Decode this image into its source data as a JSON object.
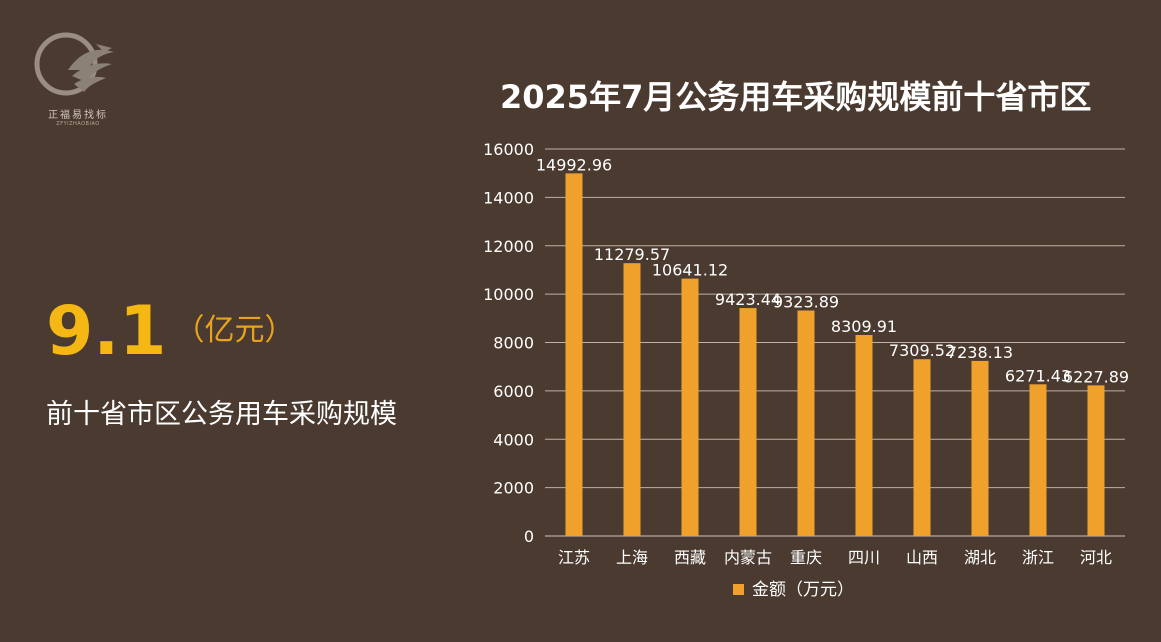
{
  "logo": {
    "name": "正福易找标",
    "sub": "ZFYIZHAOBIAO"
  },
  "headline": {
    "value": "9.1",
    "unit": "（亿元）",
    "caption": "前十省市区公务用车采购规模"
  },
  "colors": {
    "background": "#4a3a2f",
    "bar": "#f0a12c",
    "highlight": "#f5b713",
    "text": "#ffffff"
  },
  "chart_data": {
    "type": "bar",
    "title": "2025年7月公务用车采购规模前十省市区",
    "categories": [
      "江苏",
      "上海",
      "西藏",
      "内蒙古",
      "重庆",
      "四川",
      "山西",
      "湖北",
      "浙江",
      "河北"
    ],
    "series": [
      {
        "name": "金额（万元）",
        "values": [
          14992.96,
          11279.57,
          10641.12,
          9423.44,
          9323.89,
          8309.91,
          7309.52,
          7238.13,
          6271.43,
          6227.89
        ]
      }
    ],
    "data_labels": [
      "14992.96",
      "11279.57",
      "10641.12",
      "9423.44",
      "9323.89",
      "8309.91",
      "7309.52",
      "7238.13",
      "6271.43",
      "6227.89"
    ],
    "y_ticks": [
      "0",
      "2000",
      "4000",
      "6000",
      "8000",
      "10000",
      "12000",
      "14000",
      "16000"
    ],
    "ylim": [
      0,
      16000
    ],
    "grid": true,
    "legend_position": "bottom"
  }
}
